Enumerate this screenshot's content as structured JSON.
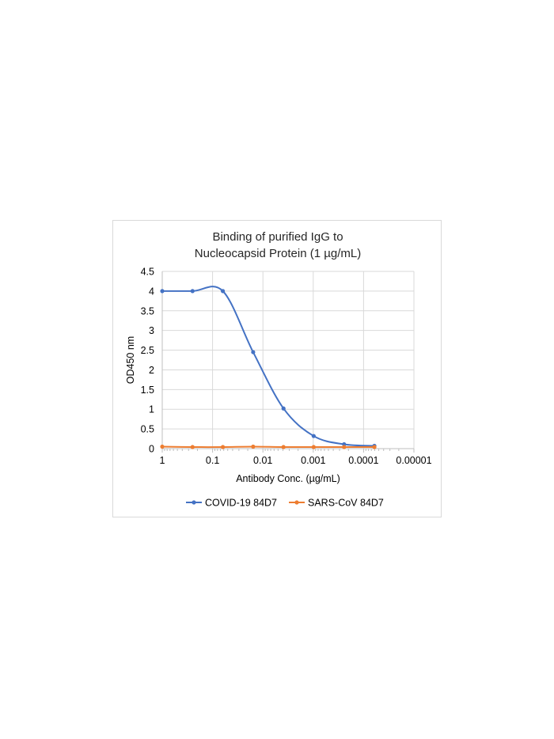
{
  "chart_data": {
    "type": "line",
    "title": [
      "Binding of purified IgG to",
      "Nucleocapsid Protein (1 µg/mL)"
    ],
    "xlabel": "Antibody Conc. (µg/mL)",
    "ylabel": "OD450 nm",
    "x_scale": "log",
    "x_reversed": true,
    "xlim": [
      1,
      1e-05
    ],
    "ylim": [
      0,
      4.5
    ],
    "x_ticks": [
      "1",
      "0.1",
      "0.01",
      "0.001",
      "0.0001",
      "0.00001"
    ],
    "y_ticks": [
      "0",
      "0.5",
      "1",
      "1.5",
      "2",
      "2.5",
      "3",
      "3.5",
      "4",
      "4.5"
    ],
    "grid": true,
    "legend_position": "bottom",
    "x": [
      1,
      0.25,
      0.0625,
      0.015625,
      0.0039,
      0.00098,
      0.000244,
      6.1e-05
    ],
    "series": [
      {
        "name": "COVID-19 84D7",
        "color": "#4472C4",
        "values": [
          4.0,
          4.0,
          4.0,
          2.45,
          1.02,
          0.32,
          0.11,
          0.07
        ]
      },
      {
        "name": "SARS-CoV 84D7",
        "color": "#ED7D31",
        "values": [
          0.05,
          0.04,
          0.04,
          0.05,
          0.04,
          0.04,
          0.04,
          0.04
        ]
      }
    ]
  }
}
